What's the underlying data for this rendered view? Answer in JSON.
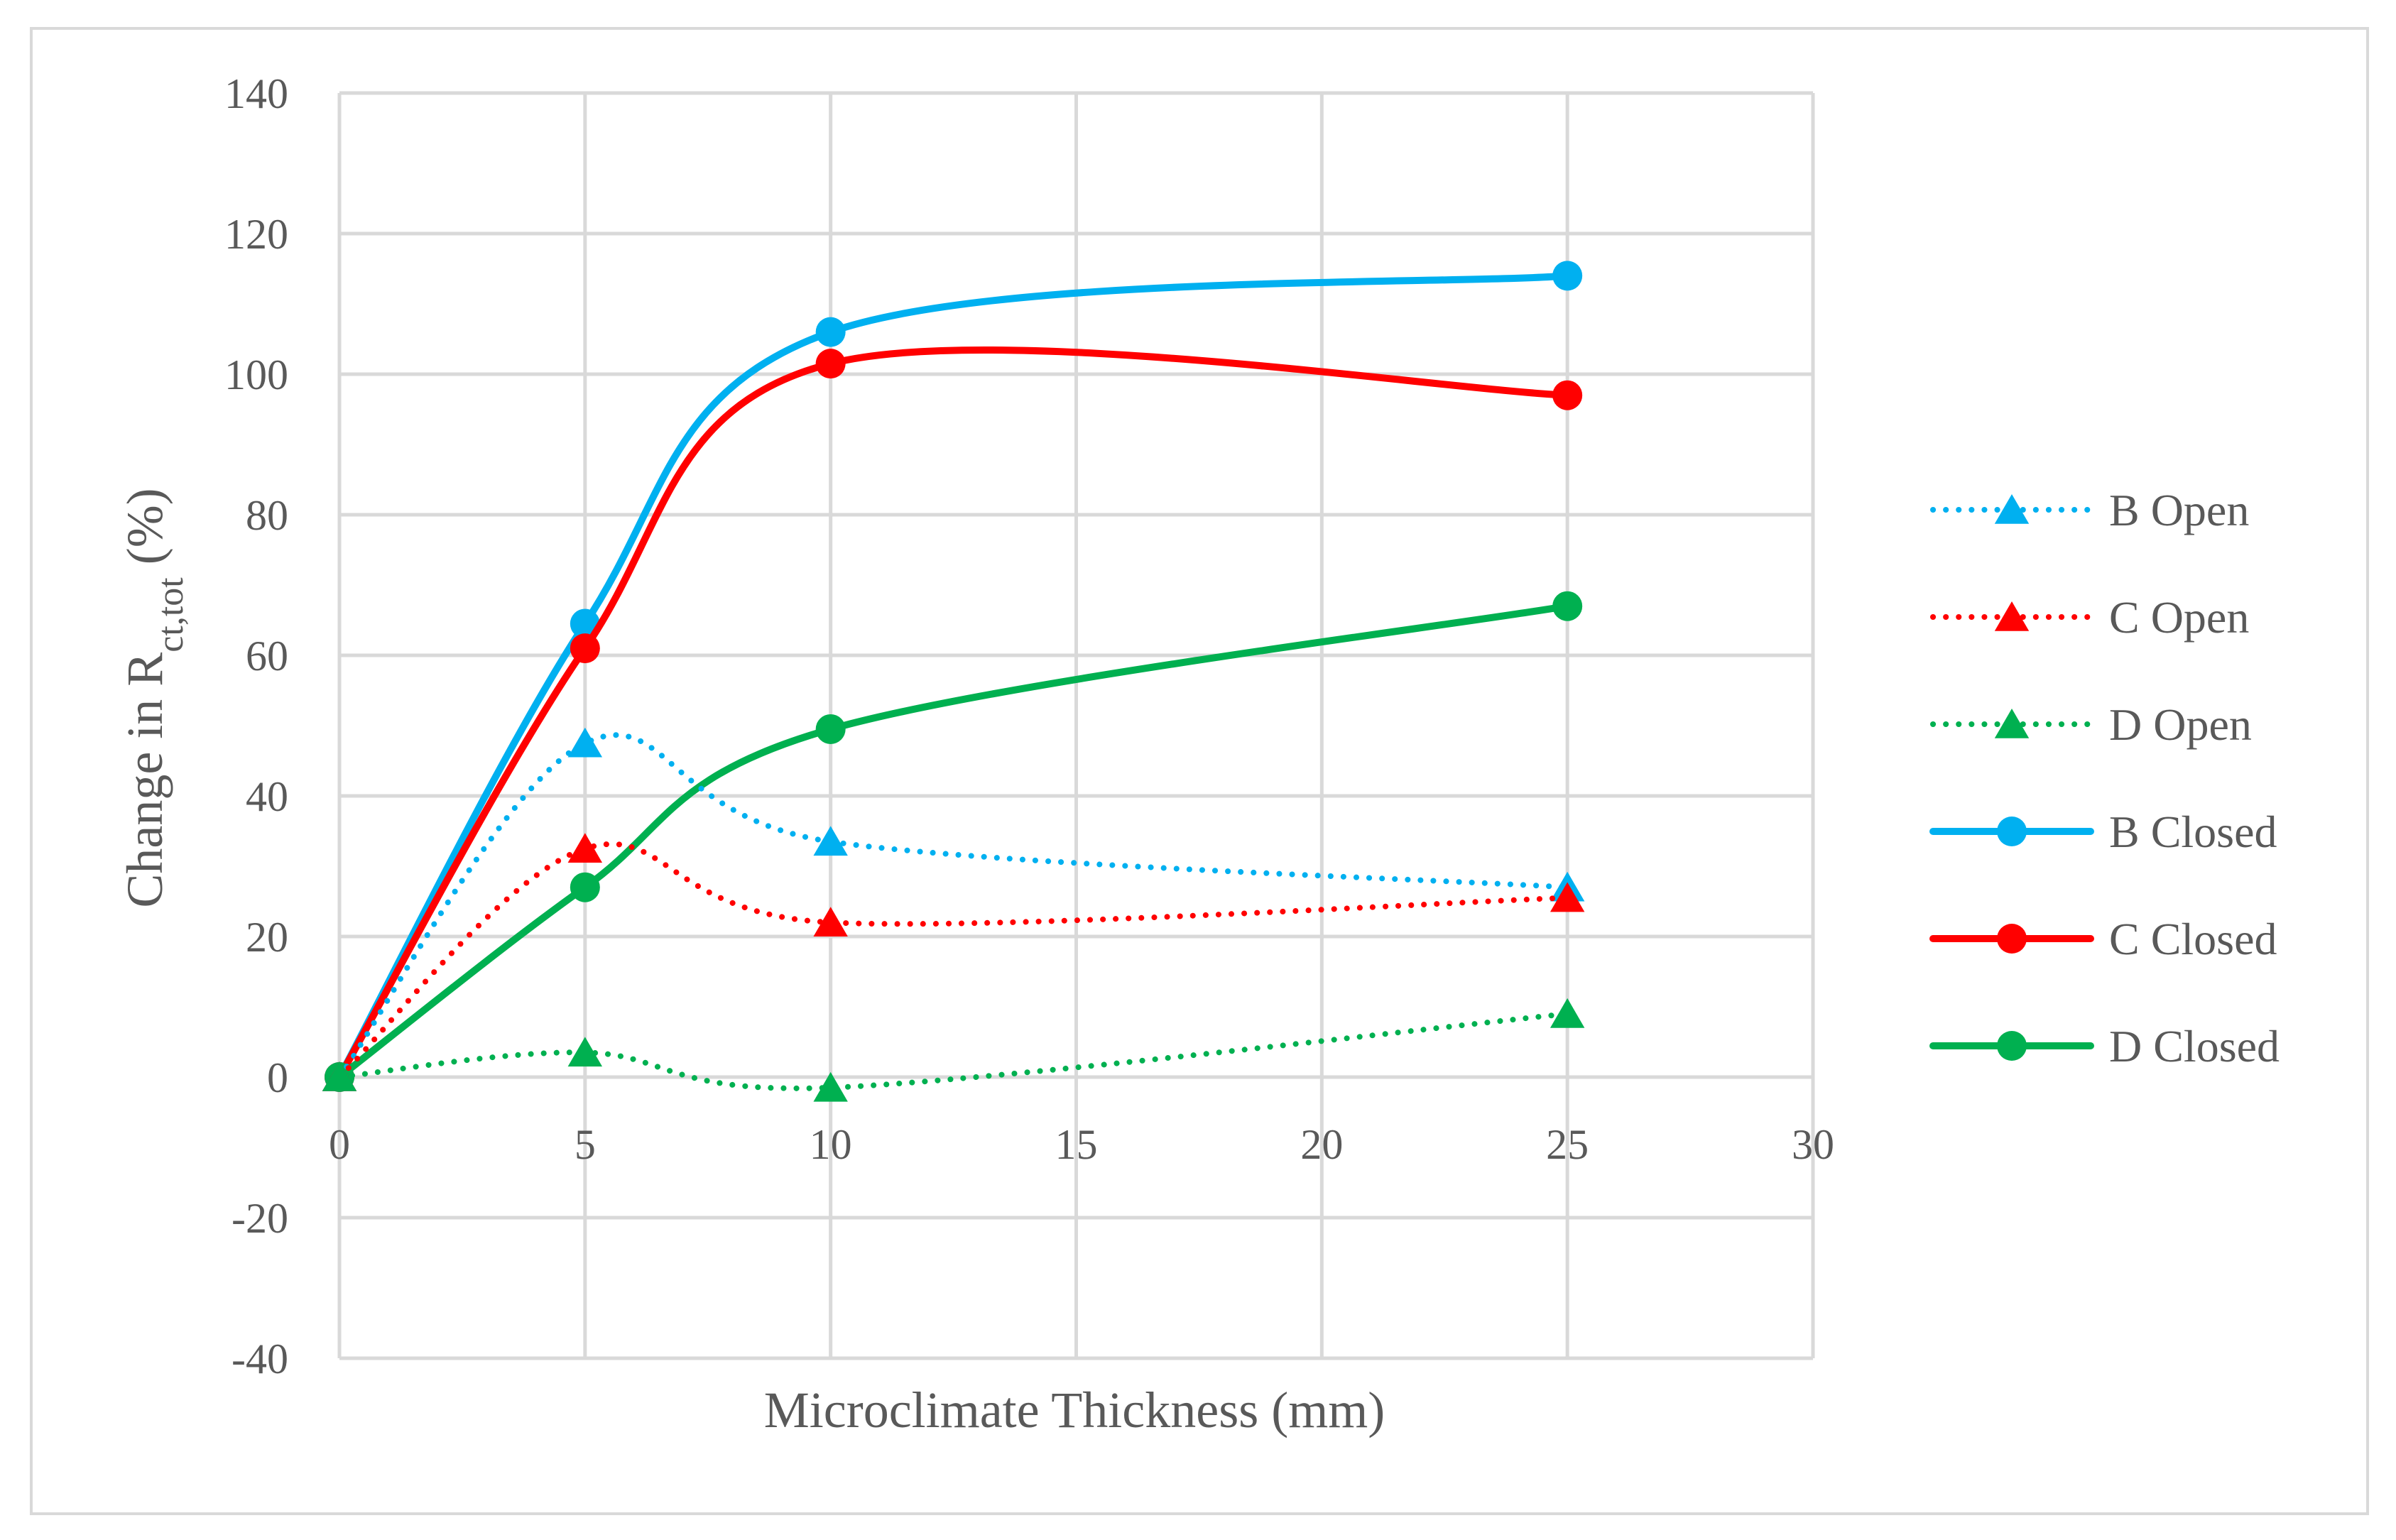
{
  "chart_data": {
    "type": "line",
    "xlabel": "Microclimate Thickness (mm)",
    "ylabel": {
      "prefix": "Change in R",
      "subscript": "ct,tot",
      "suffix": " (%)"
    },
    "xlim": [
      0,
      30
    ],
    "ylim": [
      -40,
      140
    ],
    "xticks": [
      0,
      5,
      10,
      15,
      20,
      25,
      30
    ],
    "yticks": [
      -40,
      -20,
      0,
      20,
      40,
      60,
      80,
      100,
      120,
      140
    ],
    "grid": true,
    "legend_position": "right",
    "series": [
      {
        "name": "B Open",
        "x": [
          0,
          5,
          10,
          25
        ],
        "y": [
          0,
          47.5,
          33.5,
          27
        ],
        "color": "#00b0f0",
        "dash": "dotted",
        "marker": "triangle"
      },
      {
        "name": "C Open",
        "x": [
          0,
          5,
          10,
          25
        ],
        "y": [
          0,
          32.5,
          22,
          25.5
        ],
        "color": "#ff0000",
        "dash": "dotted",
        "marker": "triangle"
      },
      {
        "name": "D Open",
        "x": [
          0,
          5,
          10,
          25
        ],
        "y": [
          0,
          3.5,
          -1.5,
          9
        ],
        "color": "#00b050",
        "dash": "dotted",
        "marker": "triangle"
      },
      {
        "name": "B Closed",
        "x": [
          0,
          5,
          10,
          25
        ],
        "y": [
          0,
          64.5,
          106,
          114
        ],
        "color": "#00b0f0",
        "dash": "solid",
        "marker": "circle"
      },
      {
        "name": "C Closed",
        "x": [
          0,
          5,
          10,
          25
        ],
        "y": [
          0,
          61,
          101.5,
          97
        ],
        "color": "#ff0000",
        "dash": "solid",
        "marker": "circle"
      },
      {
        "name": "D Closed",
        "x": [
          0,
          5,
          10,
          25
        ],
        "y": [
          0,
          27,
          49.5,
          67
        ],
        "color": "#00b050",
        "dash": "solid",
        "marker": "circle"
      }
    ]
  }
}
